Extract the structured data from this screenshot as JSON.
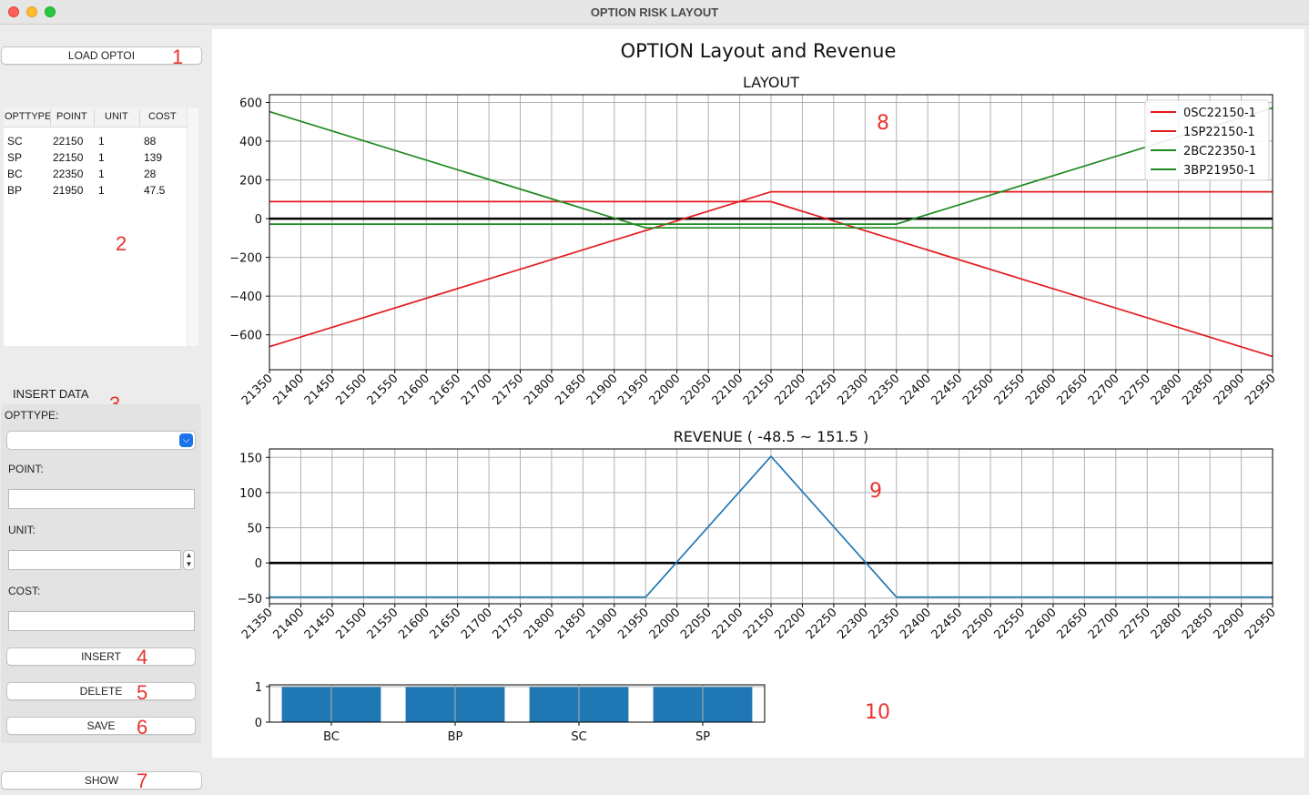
{
  "window": {
    "title": "OPTION RISK LAYOUT"
  },
  "left": {
    "load_button": "LOAD OPTOI",
    "table": {
      "headers": [
        "OPTTYPE",
        "POINT",
        "UNIT",
        "COST"
      ],
      "rows": [
        [
          "SC",
          "22150",
          "1",
          "88"
        ],
        [
          "SP",
          "22150",
          "1",
          "139"
        ],
        [
          "BC",
          "22350",
          "1",
          "28"
        ],
        [
          "BP",
          "21950",
          "1",
          "47.5"
        ]
      ]
    },
    "insert": {
      "title": "INSERT DATA",
      "opttype_label": "OPTTYPE:",
      "opttype_value": "",
      "point_label": "POINT:",
      "point_value": "",
      "unit_label": "UNIT:",
      "unit_value": "",
      "cost_label": "COST:",
      "cost_value": "",
      "insert_button": "INSERT",
      "delete_button": "DELETE",
      "save_button": "SAVE"
    },
    "show_button": "SHOW"
  },
  "annotations": [
    "1",
    "2",
    "3",
    "4",
    "5",
    "6",
    "7",
    "8",
    "9",
    "10"
  ],
  "figure_title": "OPTION Layout and Revenue",
  "chart_data": [
    {
      "type": "line",
      "title": "LAYOUT",
      "x_ticks": [
        21350,
        21400,
        21450,
        21500,
        21550,
        21600,
        21650,
        21700,
        21750,
        21800,
        21850,
        21900,
        21950,
        22000,
        22050,
        22100,
        22150,
        22200,
        22250,
        22300,
        22350,
        22400,
        22450,
        22500,
        22550,
        22600,
        22650,
        22700,
        22750,
        22800,
        22850,
        22900,
        22950
      ],
      "y_ticks": [
        600,
        400,
        200,
        0,
        -200,
        -400,
        -600
      ],
      "y_tick_labels": [
        "600",
        "400",
        "200",
        "0",
        "−200",
        "−400",
        "−600"
      ],
      "xlim": [
        21350,
        22950
      ],
      "ylim": [
        -780,
        640
      ],
      "grid": true,
      "legend": "top-right",
      "series": [
        {
          "name": "0SC22150-1",
          "color": "#e41a1c",
          "points": [
            [
              21350,
              88
            ],
            [
              22150,
              88
            ],
            [
              22950,
              -712
            ]
          ]
        },
        {
          "name": "1SP22150-1",
          "color": "#e41a1c",
          "points": [
            [
              21350,
              -661
            ],
            [
              22150,
              139
            ],
            [
              22950,
              139
            ]
          ]
        },
        {
          "name": "2BC22350-1",
          "color": "#1f8a1f",
          "points": [
            [
              21350,
              -28
            ],
            [
              22350,
              -28
            ],
            [
              22950,
              572
            ]
          ]
        },
        {
          "name": "3BP21950-1",
          "color": "#1f8a1f",
          "points": [
            [
              21350,
              552.5
            ],
            [
              21950,
              -47.5
            ],
            [
              22950,
              -47.5
            ]
          ]
        }
      ],
      "zero_line": true
    },
    {
      "type": "line",
      "title": "REVENUE ( -48.5 ~ 151.5 )",
      "x_ticks": [
        21350,
        21400,
        21450,
        21500,
        21550,
        21600,
        21650,
        21700,
        21750,
        21800,
        21850,
        21900,
        21950,
        22000,
        22050,
        22100,
        22150,
        22200,
        22250,
        22300,
        22350,
        22400,
        22450,
        22500,
        22550,
        22600,
        22650,
        22700,
        22750,
        22800,
        22850,
        22900,
        22950
      ],
      "y_ticks": [
        150,
        100,
        50,
        0,
        -50
      ],
      "y_tick_labels": [
        "150",
        "100",
        "50",
        "0",
        "−50"
      ],
      "xlim": [
        21350,
        22950
      ],
      "ylim": [
        -58,
        162
      ],
      "grid": true,
      "series": [
        {
          "color": "#1f77b4",
          "points": [
            [
              21350,
              -48.5
            ],
            [
              21950,
              -48.5
            ],
            [
              22150,
              151.5
            ],
            [
              22350,
              -48.5
            ],
            [
              22950,
              -48.5
            ]
          ]
        }
      ],
      "zero_line": true
    },
    {
      "type": "bar",
      "categories": [
        "BC",
        "BP",
        "SC",
        "SP"
      ],
      "values": [
        1,
        1,
        1,
        1
      ],
      "y_ticks": [
        1,
        0
      ],
      "ylim": [
        0,
        1.05
      ],
      "grid": true,
      "color": "#1f77b4"
    }
  ]
}
